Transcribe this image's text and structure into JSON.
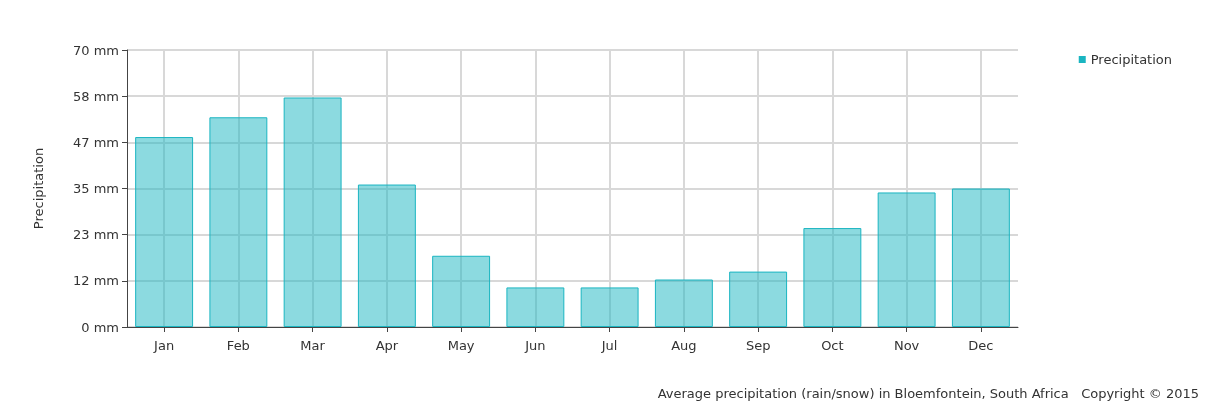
{
  "chart_data": {
    "type": "bar",
    "ylabel": "Precipitation",
    "categories": [
      "Jan",
      "Feb",
      "Mar",
      "Apr",
      "May",
      "Jun",
      "Jul",
      "Aug",
      "Sep",
      "Oct",
      "Nov",
      "Dec"
    ],
    "series": [
      {
        "name": "Precipitation",
        "color": "#1ab5c1",
        "values": [
          48,
          53,
          58,
          36,
          18,
          10,
          10,
          12,
          14,
          25,
          34,
          35
        ]
      }
    ],
    "ylim": [
      0,
      70
    ],
    "yticks": [
      {
        "value": 0,
        "label": "0 mm"
      },
      {
        "value": 11.67,
        "label": "12 mm"
      },
      {
        "value": 23.33,
        "label": "23 mm"
      },
      {
        "value": 35,
        "label": "35 mm"
      },
      {
        "value": 46.67,
        "label": "47 mm"
      },
      {
        "value": 58.33,
        "label": "58 mm"
      },
      {
        "value": 70,
        "label": "70 mm"
      }
    ],
    "grid": true,
    "legend": "top right",
    "annotations": [
      "Average precipitation (rain/snow) in Bloemfontein, South Africa   Copyright © 2015"
    ]
  }
}
